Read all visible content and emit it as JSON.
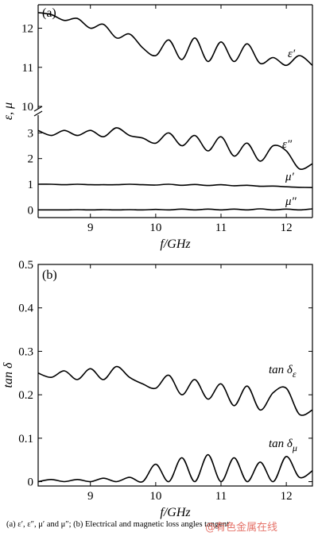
{
  "caption": "(a) ε′, ε″, μ′ and μ″; (b) Electrical and  magnetic loss angles tangent",
  "watermark": "@有色金属在线",
  "colors": {
    "line": "#000000",
    "watermark": "#e3665c"
  },
  "chart_data": [
    {
      "type": "line",
      "panel_label": "(a)",
      "xlabel": "f/GHz",
      "ylabel": "ε, μ",
      "xlim": [
        8.2,
        12.4
      ],
      "x_ticks": [
        9,
        10,
        11,
        12
      ],
      "y_ticks_upper": [
        10,
        11,
        12
      ],
      "y_ticks_lower": [
        0,
        1,
        2,
        3
      ],
      "ylim_upper": [
        10,
        12.6
      ],
      "ylim_lower": [
        -0.3,
        3.6
      ],
      "broken_axis": true,
      "grid": false,
      "x": [
        8.2,
        8.4,
        8.6,
        8.8,
        9.0,
        9.2,
        9.4,
        9.6,
        9.8,
        10.0,
        10.2,
        10.4,
        10.6,
        10.8,
        11.0,
        11.2,
        11.4,
        11.6,
        11.8,
        12.0,
        12.2,
        12.4
      ],
      "series": [
        {
          "name": "ε′",
          "values": [
            12.4,
            12.35,
            12.2,
            12.25,
            12.0,
            12.1,
            11.75,
            11.85,
            11.5,
            11.3,
            11.7,
            11.2,
            11.75,
            11.15,
            11.65,
            11.15,
            11.6,
            11.1,
            11.25,
            11.05,
            11.3,
            11.05
          ]
        },
        {
          "name": "ε″",
          "values": [
            3.1,
            2.9,
            3.1,
            2.9,
            3.1,
            2.85,
            3.2,
            2.9,
            2.8,
            2.6,
            3.0,
            2.5,
            2.9,
            2.3,
            2.85,
            2.1,
            2.6,
            1.9,
            2.5,
            2.3,
            1.6,
            1.8
          ]
        },
        {
          "name": "μ′",
          "values": [
            1.0,
            1.0,
            0.98,
            1.0,
            0.98,
            0.98,
            0.98,
            1.0,
            0.98,
            0.97,
            1.0,
            0.96,
            0.99,
            0.95,
            0.98,
            0.94,
            0.96,
            0.92,
            0.93,
            0.9,
            0.88,
            0.87
          ]
        },
        {
          "name": "μ″",
          "values": [
            0.0,
            0.0,
            0.0,
            0.01,
            0.0,
            0.01,
            0.0,
            0.01,
            0.0,
            0.02,
            0.0,
            0.03,
            0.0,
            0.03,
            0.0,
            0.03,
            0.0,
            0.04,
            0.0,
            0.03,
            0.0,
            0.04
          ]
        }
      ]
    },
    {
      "type": "line",
      "panel_label": "(b)",
      "xlabel": "f/GHz",
      "ylabel": "tan δ",
      "xlim": [
        8.2,
        12.4
      ],
      "ylim": [
        -0.01,
        0.5
      ],
      "x_ticks": [
        9,
        10,
        11,
        12
      ],
      "y_ticks": [
        0,
        0.1,
        0.2,
        0.3,
        0.4,
        0.5
      ],
      "y_tick_labels": [
        "0",
        "0.1",
        "0.2",
        "0.3",
        "0.4",
        "0.5"
      ],
      "grid": false,
      "x": [
        8.2,
        8.4,
        8.6,
        8.8,
        9.0,
        9.2,
        9.4,
        9.6,
        9.8,
        10.0,
        10.2,
        10.4,
        10.6,
        10.8,
        11.0,
        11.2,
        11.4,
        11.6,
        11.8,
        12.0,
        12.2,
        12.4
      ],
      "series": [
        {
          "name": "tan δε",
          "values": [
            0.25,
            0.24,
            0.255,
            0.235,
            0.26,
            0.235,
            0.265,
            0.24,
            0.225,
            0.215,
            0.245,
            0.2,
            0.235,
            0.19,
            0.225,
            0.175,
            0.22,
            0.165,
            0.205,
            0.215,
            0.155,
            0.165
          ]
        },
        {
          "name": "tan δμ",
          "values": [
            0.0,
            0.005,
            0.0,
            0.005,
            0.0,
            0.008,
            0.0,
            0.01,
            0.0,
            0.04,
            0.0,
            0.055,
            0.0,
            0.062,
            0.0,
            0.055,
            0.0,
            0.045,
            0.0,
            0.058,
            0.01,
            0.025
          ]
        }
      ]
    }
  ]
}
